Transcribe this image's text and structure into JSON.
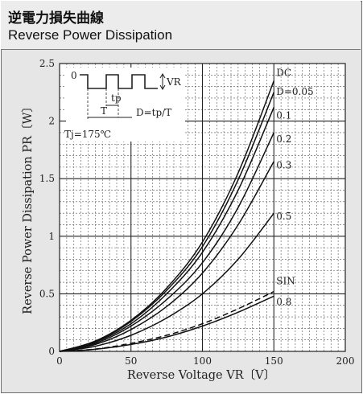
{
  "header": {
    "title_jp": "逆電力損失曲線",
    "title_en": "Reverse Power Dissipation"
  },
  "chart_data": {
    "type": "line",
    "title": "Reverse Power Dissipation",
    "xlabel": "Reverse Voltage  VR〔V〕",
    "ylabel": "Reverse Power Dissipation  PR〔W〕",
    "xlim": [
      0,
      200
    ],
    "ylim": [
      0,
      2.5
    ],
    "xticks": [
      "0",
      "50",
      "100",
      "150",
      "200"
    ],
    "yticks": [
      "0",
      "0.5",
      "1",
      "1.5",
      "2",
      "2.5"
    ],
    "grid": true,
    "x": [
      0,
      25,
      50,
      75,
      100,
      125,
      150
    ],
    "series": [
      {
        "name": "DC",
        "dashed": false,
        "values": [
          0,
          0.09,
          0.27,
          0.55,
          0.95,
          1.55,
          2.35
        ]
      },
      {
        "name": "D=0.05",
        "dashed": false,
        "values": [
          0,
          0.085,
          0.26,
          0.53,
          0.91,
          1.49,
          2.25
        ]
      },
      {
        "name": "0.1",
        "dashed": false,
        "values": [
          0,
          0.08,
          0.24,
          0.5,
          0.86,
          1.4,
          2.12
        ]
      },
      {
        "name": "0.2",
        "dashed": false,
        "values": [
          0,
          0.07,
          0.22,
          0.45,
          0.77,
          1.25,
          1.9
        ]
      },
      {
        "name": "0.3",
        "dashed": false,
        "values": [
          0,
          0.06,
          0.19,
          0.39,
          0.68,
          1.1,
          1.65
        ]
      },
      {
        "name": "0.5",
        "dashed": false,
        "values": [
          0,
          0.045,
          0.14,
          0.29,
          0.5,
          0.8,
          1.2
        ]
      },
      {
        "name": "SIN",
        "dashed": true,
        "values": [
          0,
          0.02,
          0.07,
          0.14,
          0.24,
          0.37,
          0.52
        ]
      },
      {
        "name": "0.8",
        "dashed": false,
        "values": [
          0,
          0.018,
          0.06,
          0.125,
          0.22,
          0.34,
          0.48
        ]
      }
    ],
    "inset": {
      "level_zero": "0",
      "level_vr": "VR",
      "tp_label": "tp",
      "t_label": "T",
      "duty_formula": "D=tp/T",
      "temperature": "Tj=175℃"
    }
  }
}
